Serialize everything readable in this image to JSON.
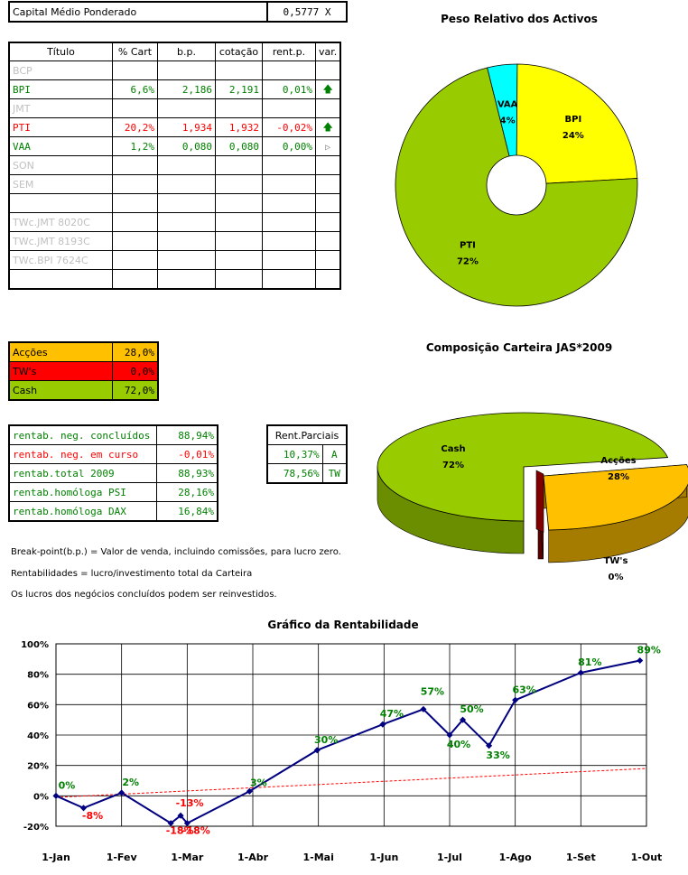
{
  "capital": {
    "label": "Capital Médio Ponderado",
    "value": "0,5777 X"
  },
  "portfolio": {
    "headers": [
      "Título",
      "% Cart",
      "b.p.",
      "cotação",
      "rent.p.",
      "var."
    ],
    "rows": [
      {
        "name": "BCP",
        "cart": "",
        "bp": "",
        "cot": "",
        "rent": "",
        "var": "",
        "color": "grey"
      },
      {
        "name": "BPI",
        "cart": "6,6%",
        "bp": "2,186",
        "cot": "2,191",
        "rent": "0,01%",
        "var": "up",
        "color": "green"
      },
      {
        "name": "JMT",
        "cart": "",
        "bp": "",
        "cot": "",
        "rent": "",
        "var": "",
        "color": "grey"
      },
      {
        "name": "PTI",
        "cart": "20,2%",
        "bp": "1,934",
        "cot": "1,932",
        "rent": "-0,02%",
        "var": "up",
        "color": "red"
      },
      {
        "name": "VAA",
        "cart": "1,2%",
        "bp": "0,080",
        "cot": "0,080",
        "rent": "0,00%",
        "var": "right",
        "color": "green"
      },
      {
        "name": "SON",
        "cart": "",
        "bp": "",
        "cot": "",
        "rent": "",
        "var": "",
        "color": "grey"
      },
      {
        "name": "SEM",
        "cart": "",
        "bp": "",
        "cot": "",
        "rent": "",
        "var": "",
        "color": "grey"
      },
      {
        "name": "",
        "cart": "",
        "bp": "",
        "cot": "",
        "rent": "",
        "var": "",
        "color": "grey"
      },
      {
        "name": "TWc.JMT 8020C",
        "cart": "",
        "bp": "",
        "cot": "",
        "rent": "",
        "var": "",
        "color": "grey"
      },
      {
        "name": "TWc.JMT 8193C",
        "cart": "",
        "bp": "",
        "cot": "",
        "rent": "",
        "var": "",
        "color": "grey"
      },
      {
        "name": "TWc.BPI 7624C",
        "cart": "",
        "bp": "",
        "cot": "",
        "rent": "",
        "var": "",
        "color": "grey"
      },
      {
        "name": "",
        "cart": "",
        "bp": "",
        "cot": "",
        "rent": "",
        "var": "",
        "color": "grey"
      }
    ]
  },
  "composition": [
    {
      "label": "Acções",
      "value": "28,0%",
      "bg": "#ffc000",
      "fg": "#000000"
    },
    {
      "label": "TW's",
      "value": "0,0%",
      "bg": "#ff0000",
      "fg": "#000000"
    },
    {
      "label": "Cash",
      "value": "72,0%",
      "bg": "#99cc00",
      "fg": "#000000"
    }
  ],
  "returns": [
    {
      "label": "rentab. neg. concluídos",
      "value": "88,94%",
      "color": "green"
    },
    {
      "label": "rentab. neg. em curso",
      "value": "-0,01%",
      "color": "red"
    },
    {
      "label": "rentab.total 2009",
      "value": "88,93%",
      "color": "green"
    },
    {
      "label": "rentab.homóloga PSI",
      "value": "28,16%",
      "color": "green"
    },
    {
      "label": "rentab.homóloga DAX",
      "value": "16,84%",
      "color": "green"
    }
  ],
  "partials": {
    "title": "Rent.Parciais",
    "rows": [
      {
        "value": "10,37%",
        "tag": "A"
      },
      {
        "value": "78,56%",
        "tag": "TW"
      }
    ]
  },
  "notes": [
    "Break-point(b.p.) = Valor de venda, incluindo comissões, para lucro zero.",
    "Rentabilidades = lucro/investimento total da Carteira",
    "Os lucros dos negócios concluídos podem ser reinvestidos."
  ],
  "colors": {
    "green": "#008000",
    "red": "#ff0000",
    "grey": "#c0c0c0",
    "line": "#000080"
  },
  "chart_data": [
    {
      "type": "pie",
      "title": "Peso Relativo dos Activos",
      "labels": [
        "VAA",
        "BPI",
        "PTI"
      ],
      "values": [
        4,
        24,
        72
      ],
      "value_labels": [
        "4%",
        "24%",
        "72%"
      ],
      "colors": [
        "#00ffff",
        "#ffff00",
        "#99cc00"
      ]
    },
    {
      "type": "pie",
      "title": "Composição Carteira JAS*2009",
      "labels": [
        "Acções",
        "TW's",
        "Cash"
      ],
      "values": [
        28,
        0,
        72
      ],
      "value_labels": [
        "28%",
        "0%",
        "72%"
      ],
      "colors": [
        "#ffc000",
        "#990000",
        "#99cc00"
      ]
    },
    {
      "type": "line",
      "title": "Gráfico da Rentabilidade",
      "x_ticks": [
        "1-Jan",
        "1-Fev",
        "1-Mar",
        "1-Abr",
        "1-Mai",
        "1-Jun",
        "1-Jul",
        "1-Ago",
        "1-Set",
        "1-Out"
      ],
      "y_ticks": [
        "-20%",
        "0%",
        "20%",
        "40%",
        "60%",
        "80%",
        "100%"
      ],
      "ylim": [
        -20,
        100
      ],
      "series": [
        {
          "name": "Rentabilidade",
          "x": [
            0,
            0.42,
            1.0,
            1.75,
            1.9,
            2.0,
            2.95,
            3.98,
            4.98,
            5.6,
            6.0,
            6.2,
            6.6,
            7.0,
            8.0,
            8.9
          ],
          "values": [
            0,
            -8,
            2,
            -18,
            -13,
            -18,
            3,
            30,
            47,
            57,
            40,
            50,
            33,
            63,
            81,
            89
          ]
        },
        {
          "name": "Tendência",
          "x": [
            0,
            9
          ],
          "values": [
            -1,
            18
          ]
        }
      ],
      "point_labels": [
        {
          "text": "0%",
          "xi": 0,
          "color": "green",
          "dy": -8
        },
        {
          "text": "-8%",
          "xi": 1,
          "color": "red",
          "dy": 12
        },
        {
          "text": "2%",
          "xi": 2,
          "color": "green",
          "dy": -8
        },
        {
          "text": "-18%",
          "xi": 3,
          "color": "red",
          "dy": 12
        },
        {
          "text": "-13%",
          "xi": 4,
          "color": "red",
          "dy": -10
        },
        {
          "text": "-18%",
          "xi": 5,
          "color": "red",
          "dy": 12
        },
        {
          "text": "3%",
          "xi": 6,
          "color": "green",
          "dy": -6
        },
        {
          "text": "30%",
          "xi": 7,
          "color": "green",
          "dy": -8
        },
        {
          "text": "47%",
          "xi": 8,
          "color": "green",
          "dy": -8
        },
        {
          "text": "57%",
          "xi": 9,
          "color": "green",
          "dy": -16
        },
        {
          "text": "40%",
          "xi": 10,
          "color": "green",
          "dy": 14
        },
        {
          "text": "50%",
          "xi": 11,
          "color": "green",
          "dy": -8
        },
        {
          "text": "33%",
          "xi": 12,
          "color": "green",
          "dy": 14
        },
        {
          "text": "63%",
          "xi": 13,
          "color": "green",
          "dy": -8
        },
        {
          "text": "81%",
          "xi": 14,
          "color": "green",
          "dy": -8
        },
        {
          "text": "89%",
          "xi": 15,
          "color": "green",
          "dy": -8
        }
      ]
    }
  ]
}
